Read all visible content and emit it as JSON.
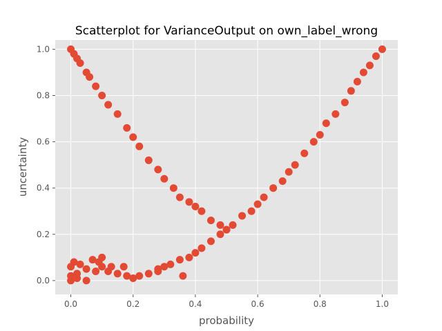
{
  "chart_data": {
    "type": "scatter",
    "title": "Scatterplot for VarianceOutput on own_label_wrong",
    "xlabel": "probability",
    "ylabel": "uncertainty",
    "xlim": [
      -0.05,
      1.05
    ],
    "ylim": [
      -0.06,
      1.04
    ],
    "xticks": [
      0.0,
      0.2,
      0.4,
      0.6,
      0.8,
      1.0
    ],
    "xtick_labels": [
      "0.0",
      "0.2",
      "0.4",
      "0.6",
      "0.8",
      "1.0"
    ],
    "yticks": [
      0.0,
      0.2,
      0.4,
      0.6,
      0.8,
      1.0
    ],
    "ytick_labels": [
      "0.0",
      "0.2",
      "0.4",
      "0.6",
      "0.8",
      "1.0"
    ],
    "grid": true,
    "style": "ggplot",
    "colors": {
      "marker": "#E24A33",
      "panel": "#E5E5E5",
      "grid": "#FFFFFF",
      "text": "#555555",
      "title": "#000000"
    },
    "series": [
      {
        "color": "#E24A33",
        "x": [
          0.0,
          0.01,
          0.02,
          0.03,
          0.05,
          0.06,
          0.08,
          0.1,
          0.12,
          0.15,
          0.18,
          0.2,
          0.22,
          0.25,
          0.28,
          0.3,
          0.33,
          0.35,
          0.38,
          0.4,
          0.42,
          0.45,
          0.48,
          0.5,
          0.0,
          0.02,
          0.05,
          0.08,
          0.1,
          0.12,
          0.15,
          0.18,
          0.2,
          0.22,
          0.25,
          0.28,
          0.3,
          0.32,
          0.35,
          0.38,
          0.4,
          0.42,
          0.45,
          0.48,
          0.5,
          0.52,
          0.55,
          0.58,
          0.6,
          0.62,
          0.65,
          0.68,
          0.7,
          0.72,
          0.75,
          0.78,
          0.8,
          0.82,
          0.85,
          0.88,
          0.9,
          0.92,
          0.94,
          0.96,
          0.98,
          1.0,
          0.0,
          0.0,
          0.01,
          0.02,
          0.03,
          0.05,
          0.07,
          0.1,
          0.13,
          0.17,
          0.09,
          0.36,
          0.28
        ],
        "y": [
          1.0,
          0.98,
          0.96,
          0.94,
          0.9,
          0.88,
          0.84,
          0.8,
          0.76,
          0.72,
          0.66,
          0.62,
          0.58,
          0.52,
          0.48,
          0.44,
          0.4,
          0.36,
          0.34,
          0.32,
          0.3,
          0.26,
          0.24,
          0.22,
          0.02,
          0.03,
          0.05,
          0.04,
          0.06,
          0.04,
          0.03,
          0.02,
          0.01,
          0.02,
          0.03,
          0.05,
          0.06,
          0.07,
          0.09,
          0.1,
          0.12,
          0.14,
          0.17,
          0.2,
          0.22,
          0.24,
          0.28,
          0.3,
          0.33,
          0.36,
          0.4,
          0.43,
          0.47,
          0.5,
          0.55,
          0.6,
          0.63,
          0.68,
          0.72,
          0.77,
          0.82,
          0.86,
          0.9,
          0.93,
          0.97,
          1.0,
          0.06,
          0.0,
          0.08,
          0.01,
          0.07,
          0.0,
          0.09,
          0.1,
          0.06,
          0.06,
          0.08,
          0.02,
          0.04
        ]
      }
    ]
  }
}
